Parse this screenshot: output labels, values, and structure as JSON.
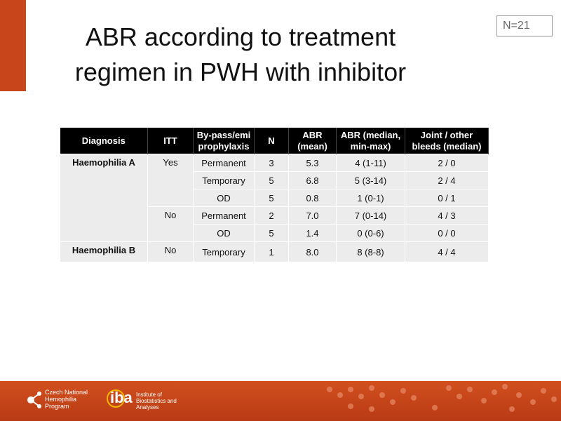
{
  "slide": {
    "title_lines": [
      "ABR according to treatment",
      "regimen in PWH with inhibitor"
    ],
    "badge": "N=21",
    "table": {
      "header": [
        "Diagnosis",
        "ITT",
        "By-pass/emi prophylaxis",
        "N",
        "ABR (mean)",
        "ABR (median, min-max)",
        "Joint / other bleeds (median)"
      ],
      "groups": [
        {
          "diagnosis": "Haemophilia A",
          "itt": [
            {
              "label": "Yes",
              "rows": [
                [
                  "Permanent",
                  "3",
                  "5.3",
                  "4 (1-11)",
                  "2 / 0"
                ],
                [
                  "Temporary",
                  "5",
                  "6.8",
                  "5 (3-14)",
                  "2 / 4"
                ],
                [
                  "OD",
                  "5",
                  "0.8",
                  "1 (0-1)",
                  "0 / 1"
                ]
              ]
            },
            {
              "label": "No",
              "rows": [
                [
                  "Permanent",
                  "2",
                  "7.0",
                  "7 (0-14)",
                  "4 / 3"
                ],
                [
                  "OD",
                  "5",
                  "1.4",
                  "0 (0-6)",
                  "0 / 0"
                ]
              ]
            }
          ]
        },
        {
          "diagnosis": "Haemophilia B",
          "itt": [
            {
              "label": "No",
              "rows": [
                [
                  "Temporary",
                  "1",
                  "8.0",
                  "8 (8-8)",
                  "4 / 4"
                ]
              ]
            }
          ]
        }
      ]
    },
    "footer": {
      "logo1": "Czech National Hemophilia Program",
      "logo2": "iba",
      "logo2_text": "Institute of Biostatistics and Analyses"
    }
  }
}
